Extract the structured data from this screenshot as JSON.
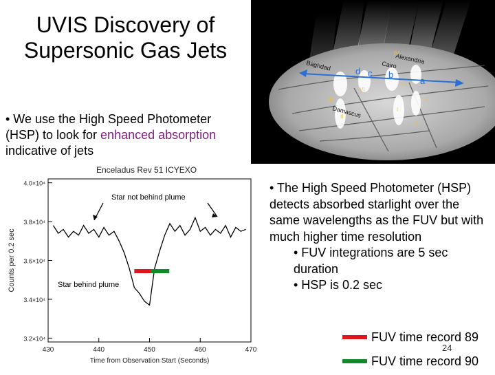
{
  "slide": {
    "title": "UVIS Discovery of Supersonic Gas Jets",
    "left_bullet_prefix": "• We use the High Speed Photometer (HSP) to look for ",
    "left_bullet_highlight": "enhanced absorption",
    "left_bullet_suffix": " indicative of jets",
    "right_bullet_main": "• The High Speed Photometer (HSP) detects absorbed starlight over the same wavelengths as the FUV but with much higher time resolution",
    "right_sub_1": "• FUV integrations are 5 sec duration",
    "right_sub_2": "• HSP is 0.2 sec",
    "legend": [
      {
        "label": "FUV time record 89",
        "color": "#e0141c"
      },
      {
        "label": "FUV time record 90",
        "color": "#118a2c"
      }
    ],
    "page_number": "24"
  },
  "image": {
    "place_labels": [
      "Alexandria",
      "Cairo",
      "Baghdad",
      "Damascus"
    ],
    "jet_letters": [
      "d",
      "c",
      "b",
      "a"
    ],
    "roman_labels": [
      "IV",
      "VI",
      "III",
      "II",
      "I",
      "V",
      "VII",
      "VIII"
    ],
    "colors": {
      "arrow": "#2a6fd6",
      "place_text": "#111111",
      "roman_text": "#e8c050"
    }
  },
  "plot": {
    "header": "Enceladus Rev 51 ICYEXO",
    "annotation_top": "Star not behind plume",
    "annotation_bottom": "Star behind plume",
    "chart_data": {
      "type": "line",
      "xlabel": "Time from Observation Start (Seconds)",
      "ylabel": "Counts per 0.2 sec",
      "xlim": [
        430,
        470
      ],
      "ylim": [
        31800,
        40200
      ],
      "xticks": [
        "430",
        "440",
        "450",
        "460",
        "470"
      ],
      "yticks": [
        "3.2×10⁴",
        "3.4×10⁴",
        "3.6×10⁴",
        "3.8×10⁴",
        "4.0×10⁴"
      ],
      "x": [
        431,
        432,
        433,
        434,
        435,
        436,
        437,
        438,
        439,
        440,
        441,
        442,
        443,
        444,
        445,
        446,
        447,
        448,
        449,
        450,
        451,
        452,
        453,
        454,
        455,
        456,
        457,
        458,
        459,
        460,
        461,
        462,
        463,
        464,
        465,
        466,
        467,
        468,
        469
      ],
      "series": [
        {
          "values": [
            37800,
            37400,
            37600,
            37200,
            37500,
            37300,
            37800,
            37400,
            37600,
            37200,
            37700,
            37300,
            37500,
            37000,
            36400,
            35600,
            34600,
            34300,
            33900,
            33700,
            35600,
            36500,
            37300,
            37900,
            37500,
            37800,
            37300,
            37600,
            38200,
            37500,
            37700,
            37300,
            37600,
            37400,
            37800,
            37200,
            37700,
            37500,
            37600
          ],
          "color": "#000000"
        }
      ],
      "bars": [
        {
          "x_start": 447.0,
          "x_end": 450.2,
          "y": 35450,
          "color": "#e0141c"
        },
        {
          "x_start": 450.2,
          "x_end": 453.9,
          "y": 35450,
          "color": "#118a2c"
        }
      ]
    }
  }
}
